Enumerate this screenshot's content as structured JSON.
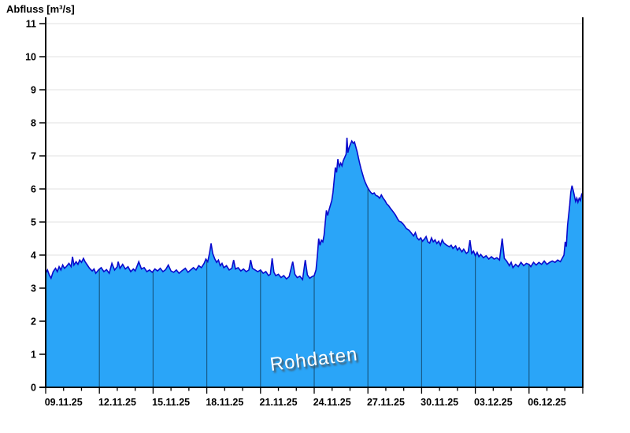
{
  "chart": {
    "title": "Abfluss [m³/s]",
    "watermark": "Rohdaten",
    "colors": {
      "area_fill": "#2aa5f8",
      "area_line": "#0a0acd",
      "h_grid": "#e8e8e8",
      "v_grid_on_area": "rgba(0,0,0,0.45)",
      "axis": "#000000",
      "label": "#000000"
    },
    "chart_data": {
      "type": "area",
      "title": "Abfluss [m³/s]",
      "ylabel": "Abfluss [m³/s]",
      "xlabel": "",
      "ylim": [
        0,
        11
      ],
      "y_ticks": [
        0,
        1,
        2,
        3,
        4,
        5,
        6,
        7,
        8,
        9,
        10,
        11
      ],
      "x_tick_labels": [
        "09.11.25",
        "12.11.25",
        "15.11.25",
        "18.11.25",
        "21.11.25",
        "24.11.25",
        "27.11.25",
        "30.11.25",
        "03.12.25",
        "06.12.25"
      ],
      "x_days_total": 30,
      "x_major_every_days": 3,
      "x_minor_every_days": 1,
      "x_label_offset_days": 1,
      "legend": "none",
      "grid": "horizontal light gridlines at each integer; vertical 3-day gridlines visible only over filled area",
      "series": [
        {
          "name": "Rohdaten",
          "unit": "m³/s",
          "x_unit": "days since 09.11.25 00:00",
          "points": [
            [
              0.0,
              3.45
            ],
            [
              0.1,
              3.55
            ],
            [
              0.2,
              3.4
            ],
            [
              0.3,
              3.3
            ],
            [
              0.42,
              3.5
            ],
            [
              0.55,
              3.6
            ],
            [
              0.65,
              3.5
            ],
            [
              0.75,
              3.65
            ],
            [
              0.85,
              3.55
            ],
            [
              0.95,
              3.7
            ],
            [
              1.05,
              3.6
            ],
            [
              1.15,
              3.65
            ],
            [
              1.3,
              3.75
            ],
            [
              1.42,
              3.65
            ],
            [
              1.5,
              3.95
            ],
            [
              1.58,
              3.7
            ],
            [
              1.7,
              3.8
            ],
            [
              1.8,
              3.72
            ],
            [
              1.9,
              3.85
            ],
            [
              2.0,
              3.78
            ],
            [
              2.11,
              3.9
            ],
            [
              2.2,
              3.8
            ],
            [
              2.3,
              3.72
            ],
            [
              2.45,
              3.6
            ],
            [
              2.6,
              3.52
            ],
            [
              2.7,
              3.58
            ],
            [
              2.8,
              3.45
            ],
            [
              2.95,
              3.55
            ],
            [
              3.1,
              3.62
            ],
            [
              3.25,
              3.5
            ],
            [
              3.4,
              3.56
            ],
            [
              3.55,
              3.45
            ],
            [
              3.7,
              3.75
            ],
            [
              3.85,
              3.55
            ],
            [
              4.0,
              3.65
            ],
            [
              4.05,
              3.8
            ],
            [
              4.15,
              3.6
            ],
            [
              4.3,
              3.72
            ],
            [
              4.45,
              3.58
            ],
            [
              4.6,
              3.65
            ],
            [
              4.75,
              3.5
            ],
            [
              4.9,
              3.58
            ],
            [
              5.0,
              3.52
            ],
            [
              5.2,
              3.8
            ],
            [
              5.35,
              3.58
            ],
            [
              5.5,
              3.62
            ],
            [
              5.65,
              3.5
            ],
            [
              5.8,
              3.55
            ],
            [
              5.95,
              3.48
            ],
            [
              6.1,
              3.58
            ],
            [
              6.25,
              3.52
            ],
            [
              6.4,
              3.6
            ],
            [
              6.55,
              3.5
            ],
            [
              6.7,
              3.56
            ],
            [
              6.85,
              3.7
            ],
            [
              7.0,
              3.52
            ],
            [
              7.15,
              3.48
            ],
            [
              7.3,
              3.55
            ],
            [
              7.45,
              3.45
            ],
            [
              7.6,
              3.52
            ],
            [
              7.8,
              3.6
            ],
            [
              7.95,
              3.48
            ],
            [
              8.1,
              3.55
            ],
            [
              8.25,
              3.62
            ],
            [
              8.4,
              3.55
            ],
            [
              8.55,
              3.68
            ],
            [
              8.7,
              3.62
            ],
            [
              8.85,
              3.75
            ],
            [
              8.95,
              3.88
            ],
            [
              9.05,
              3.8
            ],
            [
              9.15,
              4.05
            ],
            [
              9.24,
              4.35
            ],
            [
              9.33,
              4.05
            ],
            [
              9.45,
              3.88
            ],
            [
              9.55,
              3.78
            ],
            [
              9.65,
              3.85
            ],
            [
              9.75,
              3.68
            ],
            [
              9.85,
              3.75
            ],
            [
              9.95,
              3.62
            ],
            [
              10.1,
              3.68
            ],
            [
              10.25,
              3.55
            ],
            [
              10.4,
              3.6
            ],
            [
              10.5,
              3.85
            ],
            [
              10.6,
              3.58
            ],
            [
              10.75,
              3.62
            ],
            [
              10.9,
              3.52
            ],
            [
              11.05,
              3.58
            ],
            [
              11.2,
              3.5
            ],
            [
              11.35,
              3.55
            ],
            [
              11.45,
              3.85
            ],
            [
              11.55,
              3.6
            ],
            [
              11.7,
              3.55
            ],
            [
              11.85,
              3.5
            ],
            [
              12.0,
              3.55
            ],
            [
              12.15,
              3.45
            ],
            [
              12.3,
              3.5
            ],
            [
              12.45,
              3.38
            ],
            [
              12.55,
              3.42
            ],
            [
              12.65,
              3.9
            ],
            [
              12.75,
              3.48
            ],
            [
              12.85,
              3.38
            ],
            [
              13.0,
              3.42
            ],
            [
              13.15,
              3.32
            ],
            [
              13.3,
              3.38
            ],
            [
              13.45,
              3.28
            ],
            [
              13.6,
              3.35
            ],
            [
              13.8,
              3.8
            ],
            [
              13.92,
              3.42
            ],
            [
              14.05,
              3.32
            ],
            [
              14.2,
              3.36
            ],
            [
              14.35,
              3.26
            ],
            [
              14.5,
              3.85
            ],
            [
              14.62,
              3.4
            ],
            [
              14.75,
              3.3
            ],
            [
              14.88,
              3.35
            ],
            [
              15.0,
              3.38
            ],
            [
              15.1,
              3.55
            ],
            [
              15.18,
              4.0
            ],
            [
              15.25,
              4.5
            ],
            [
              15.32,
              4.3
            ],
            [
              15.4,
              4.45
            ],
            [
              15.48,
              4.4
            ],
            [
              15.55,
              4.6
            ],
            [
              15.62,
              5.0
            ],
            [
              15.68,
              5.35
            ],
            [
              15.75,
              5.2
            ],
            [
              15.82,
              5.35
            ],
            [
              15.9,
              5.5
            ],
            [
              15.98,
              5.65
            ],
            [
              16.05,
              5.9
            ],
            [
              16.12,
              6.3
            ],
            [
              16.18,
              6.65
            ],
            [
              16.25,
              6.5
            ],
            [
              16.32,
              6.9
            ],
            [
              16.4,
              6.68
            ],
            [
              16.48,
              6.78
            ],
            [
              16.55,
              6.7
            ],
            [
              16.62,
              6.85
            ],
            [
              16.7,
              6.95
            ],
            [
              16.78,
              7.05
            ],
            [
              16.83,
              7.55
            ],
            [
              16.88,
              7.1
            ],
            [
              16.95,
              7.25
            ],
            [
              17.02,
              7.35
            ],
            [
              17.1,
              7.45
            ],
            [
              17.18,
              7.38
            ],
            [
              17.25,
              7.42
            ],
            [
              17.32,
              7.28
            ],
            [
              17.4,
              7.12
            ],
            [
              17.48,
              6.92
            ],
            [
              17.55,
              6.75
            ],
            [
              17.62,
              6.6
            ],
            [
              17.7,
              6.45
            ],
            [
              17.78,
              6.3
            ],
            [
              17.85,
              6.2
            ],
            [
              17.95,
              6.08
            ],
            [
              18.05,
              5.98
            ],
            [
              18.15,
              5.9
            ],
            [
              18.25,
              5.85
            ],
            [
              18.35,
              5.88
            ],
            [
              18.45,
              5.8
            ],
            [
              18.55,
              5.78
            ],
            [
              18.65,
              5.72
            ],
            [
              18.75,
              5.82
            ],
            [
              18.85,
              5.72
            ],
            [
              18.95,
              5.65
            ],
            [
              19.05,
              5.55
            ],
            [
              19.15,
              5.5
            ],
            [
              19.25,
              5.42
            ],
            [
              19.35,
              5.35
            ],
            [
              19.45,
              5.28
            ],
            [
              19.55,
              5.2
            ],
            [
              19.65,
              5.1
            ],
            [
              19.75,
              5.02
            ],
            [
              19.85,
              5.0
            ],
            [
              19.95,
              4.95
            ],
            [
              20.05,
              4.88
            ],
            [
              20.15,
              4.8
            ],
            [
              20.3,
              4.75
            ],
            [
              20.45,
              4.65
            ],
            [
              20.55,
              4.58
            ],
            [
              20.65,
              4.68
            ],
            [
              20.75,
              4.52
            ],
            [
              20.85,
              4.46
            ],
            [
              20.95,
              4.52
            ],
            [
              21.05,
              4.42
            ],
            [
              21.15,
              4.48
            ],
            [
              21.25,
              4.56
            ],
            [
              21.35,
              4.4
            ],
            [
              21.45,
              4.36
            ],
            [
              21.55,
              4.52
            ],
            [
              21.65,
              4.4
            ],
            [
              21.75,
              4.46
            ],
            [
              21.85,
              4.35
            ],
            [
              21.95,
              4.42
            ],
            [
              22.05,
              4.3
            ],
            [
              22.15,
              4.46
            ],
            [
              22.25,
              4.36
            ],
            [
              22.4,
              4.3
            ],
            [
              22.55,
              4.25
            ],
            [
              22.65,
              4.3
            ],
            [
              22.75,
              4.2
            ],
            [
              22.9,
              4.28
            ],
            [
              23.0,
              4.15
            ],
            [
              23.1,
              4.22
            ],
            [
              23.25,
              4.1
            ],
            [
              23.35,
              4.18
            ],
            [
              23.5,
              4.05
            ],
            [
              23.6,
              4.1
            ],
            [
              23.7,
              4.45
            ],
            [
              23.8,
              4.05
            ],
            [
              23.9,
              4.12
            ],
            [
              24.0,
              3.98
            ],
            [
              24.1,
              4.08
            ],
            [
              24.2,
              3.95
            ],
            [
              24.3,
              4.02
            ],
            [
              24.45,
              3.92
            ],
            [
              24.6,
              3.98
            ],
            [
              24.75,
              3.88
            ],
            [
              24.9,
              3.95
            ],
            [
              25.05,
              3.88
            ],
            [
              25.2,
              3.92
            ],
            [
              25.35,
              3.85
            ],
            [
              25.5,
              4.5
            ],
            [
              25.62,
              3.9
            ],
            [
              25.75,
              3.82
            ],
            [
              25.9,
              3.68
            ],
            [
              26.0,
              3.78
            ],
            [
              26.1,
              3.62
            ],
            [
              26.25,
              3.72
            ],
            [
              26.4,
              3.65
            ],
            [
              26.55,
              3.78
            ],
            [
              26.7,
              3.68
            ],
            [
              26.85,
              3.75
            ],
            [
              27.0,
              3.72
            ],
            [
              27.1,
              3.65
            ],
            [
              27.25,
              3.78
            ],
            [
              27.4,
              3.7
            ],
            [
              27.55,
              3.78
            ],
            [
              27.7,
              3.72
            ],
            [
              27.85,
              3.82
            ],
            [
              28.0,
              3.72
            ],
            [
              28.15,
              3.78
            ],
            [
              28.3,
              3.82
            ],
            [
              28.45,
              3.78
            ],
            [
              28.6,
              3.85
            ],
            [
              28.75,
              3.8
            ],
            [
              28.85,
              3.9
            ],
            [
              28.95,
              4.0
            ],
            [
              29.02,
              4.4
            ],
            [
              29.08,
              4.25
            ],
            [
              29.15,
              4.9
            ],
            [
              29.2,
              5.15
            ],
            [
              29.27,
              5.5
            ],
            [
              29.33,
              5.9
            ],
            [
              29.4,
              6.1
            ],
            [
              29.47,
              5.95
            ],
            [
              29.53,
              5.8
            ],
            [
              29.6,
              5.62
            ],
            [
              29.67,
              5.72
            ],
            [
              29.73,
              5.6
            ],
            [
              29.8,
              5.72
            ],
            [
              29.87,
              5.65
            ],
            [
              29.93,
              5.82
            ],
            [
              30.0,
              5.9
            ]
          ]
        }
      ]
    }
  }
}
